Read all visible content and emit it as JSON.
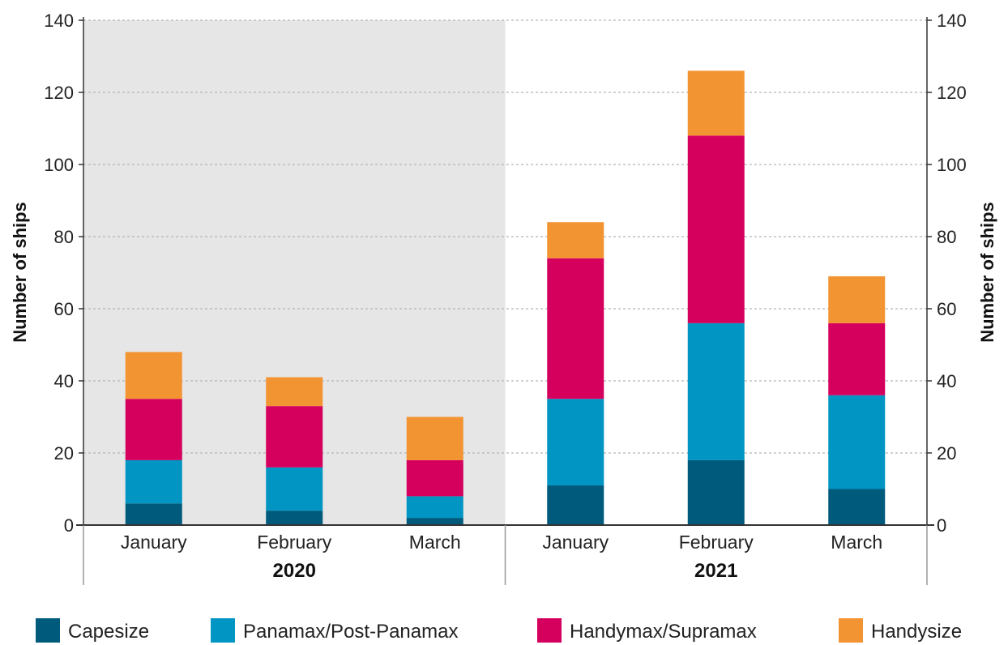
{
  "chart_data": {
    "type": "bar",
    "stacked": true,
    "title": "",
    "ylabel_left": "Number of ships",
    "ylabel_right": "Number of ships",
    "ylim": [
      0,
      140
    ],
    "yticks": [
      0,
      20,
      40,
      60,
      80,
      100,
      120,
      140
    ],
    "grid": "horizontal dashed",
    "legend_position": "bottom",
    "groups": [
      {
        "label": "2020",
        "categories": [
          "January",
          "February",
          "March"
        ],
        "shaded": true
      },
      {
        "label": "2021",
        "categories": [
          "January",
          "February",
          "March"
        ],
        "shaded": false
      }
    ],
    "categories": [
      "January",
      "February",
      "March",
      "January",
      "February",
      "March"
    ],
    "series": [
      {
        "name": "Capesize",
        "color": "#005a7c",
        "values": [
          6,
          4,
          2,
          11,
          18,
          10
        ]
      },
      {
        "name": "Panamax/Post-Panamax",
        "color": "#0095c2",
        "values": [
          12,
          12,
          6,
          24,
          38,
          26
        ]
      },
      {
        "name": "Handymax/Supramax",
        "color": "#d5005d",
        "values": [
          17,
          17,
          10,
          39,
          52,
          20
        ]
      },
      {
        "name": "Handysize",
        "color": "#f39433",
        "values": [
          13,
          8,
          12,
          10,
          18,
          13
        ]
      }
    ]
  }
}
